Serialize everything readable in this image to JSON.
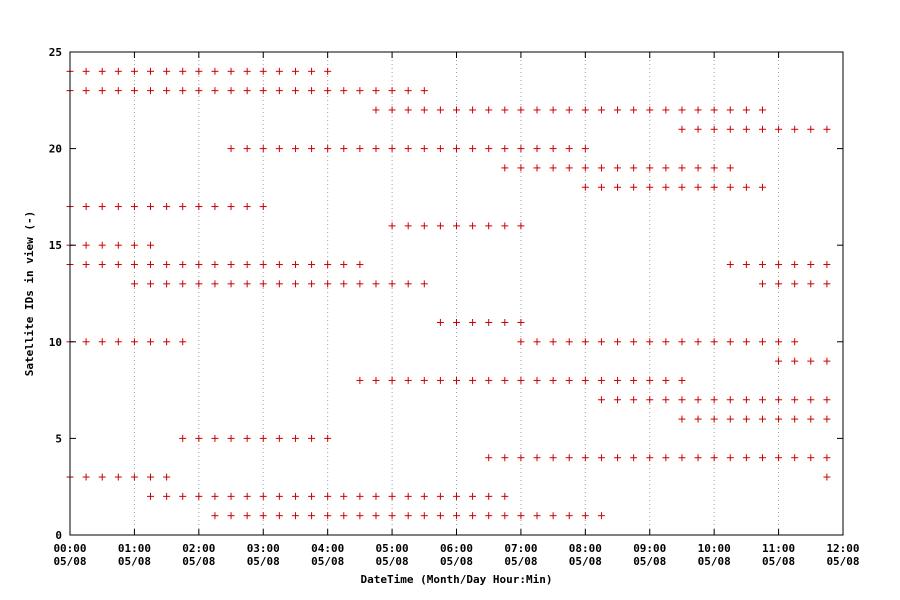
{
  "chart_data": {
    "type": "scatter",
    "xlabel": "DateTime (Month/Day Hour:Min)",
    "ylabel": "Satellite IDs in view (-)",
    "ylim": [
      0,
      25
    ],
    "xlim": [
      "05/08 00:00",
      "05/08 12:00"
    ],
    "grid": {
      "x": true,
      "y": false
    },
    "marker": "+",
    "marker_color": "#cc0000",
    "x_ticks": [
      {
        "time": "00:00",
        "date": "05/08"
      },
      {
        "time": "01:00",
        "date": "05/08"
      },
      {
        "time": "02:00",
        "date": "05/08"
      },
      {
        "time": "03:00",
        "date": "05/08"
      },
      {
        "time": "04:00",
        "date": "05/08"
      },
      {
        "time": "05:00",
        "date": "05/08"
      },
      {
        "time": "06:00",
        "date": "05/08"
      },
      {
        "time": "07:00",
        "date": "05/08"
      },
      {
        "time": "08:00",
        "date": "05/08"
      },
      {
        "time": "09:00",
        "date": "05/08"
      },
      {
        "time": "10:00",
        "date": "05/08"
      },
      {
        "time": "11:00",
        "date": "05/08"
      },
      {
        "time": "12:00",
        "date": "05/08"
      }
    ],
    "y_ticks": [
      "0",
      "5",
      "10",
      "15",
      "20",
      "25"
    ],
    "sample_interval_minutes": 15,
    "satellites": [
      {
        "id": 24,
        "start": "00:00",
        "end": "04:00"
      },
      {
        "id": 23,
        "start": "00:00",
        "end": "05:30"
      },
      {
        "id": 22,
        "start": "04:45",
        "end": "10:45"
      },
      {
        "id": 21,
        "start": "09:30",
        "end": "11:45"
      },
      {
        "id": 20,
        "start": "02:30",
        "end": "08:00"
      },
      {
        "id": 19,
        "start": "06:45",
        "end": "10:15"
      },
      {
        "id": 18,
        "start": "08:00",
        "end": "10:45"
      },
      {
        "id": 17,
        "start": "00:00",
        "end": "03:00"
      },
      {
        "id": 16,
        "start": "05:00",
        "end": "07:00"
      },
      {
        "id": 15,
        "start": "00:00",
        "end": "01:15"
      },
      {
        "id": 14,
        "start": "00:00",
        "end": "04:30"
      },
      {
        "id": 14,
        "start": "10:15",
        "end": "11:45"
      },
      {
        "id": 13,
        "start": "01:00",
        "end": "05:30"
      },
      {
        "id": 13,
        "start": "10:45",
        "end": "11:45"
      },
      {
        "id": 11,
        "start": "05:45",
        "end": "07:00"
      },
      {
        "id": 10,
        "start": "00:00",
        "end": "01:45"
      },
      {
        "id": 10,
        "start": "07:00",
        "end": "11:15"
      },
      {
        "id": 9,
        "start": "11:00",
        "end": "11:45"
      },
      {
        "id": 8,
        "start": "04:30",
        "end": "09:30"
      },
      {
        "id": 7,
        "start": "08:15",
        "end": "11:45"
      },
      {
        "id": 6,
        "start": "09:30",
        "end": "11:45"
      },
      {
        "id": 5,
        "start": "01:45",
        "end": "04:00"
      },
      {
        "id": 4,
        "start": "06:30",
        "end": "11:45"
      },
      {
        "id": 3,
        "start": "00:00",
        "end": "01:30"
      },
      {
        "id": 3,
        "start": "11:45",
        "end": "11:45"
      },
      {
        "id": 2,
        "start": "01:15",
        "end": "06:45"
      },
      {
        "id": 1,
        "start": "02:15",
        "end": "08:15"
      }
    ]
  }
}
